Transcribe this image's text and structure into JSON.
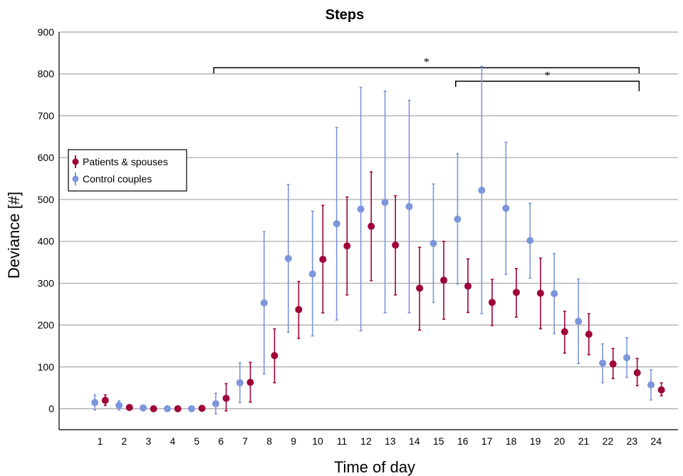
{
  "chart_data": {
    "type": "scatter",
    "title": "Steps",
    "xlabel": "Time of day",
    "ylabel": "Deviance [#]",
    "ylim": [
      -50,
      900
    ],
    "yticks": [
      0,
      100,
      200,
      300,
      400,
      500,
      600,
      700,
      800,
      900
    ],
    "categories": [
      "1",
      "2",
      "3",
      "4",
      "5",
      "6",
      "7",
      "8",
      "9",
      "10",
      "11",
      "12",
      "13",
      "14",
      "15",
      "16",
      "17",
      "18",
      "19",
      "20",
      "21",
      "22",
      "23",
      "24"
    ],
    "grid": "horizontal",
    "legend": "top-left",
    "series": [
      {
        "name": "Patients & spouses",
        "color": "#a0003a",
        "values": [
          20,
          3,
          0,
          0,
          1,
          25,
          63,
          127,
          237,
          357,
          389,
          436,
          391,
          288,
          307,
          293,
          254,
          278,
          276,
          184,
          178,
          107,
          86,
          45
        ],
        "lower": [
          8,
          0,
          0,
          0,
          0,
          -5,
          16,
          62,
          168,
          229,
          272,
          306,
          272,
          188,
          214,
          230,
          199,
          219,
          191,
          133,
          129,
          72,
          55,
          31
        ],
        "upper": [
          33,
          6,
          1,
          1,
          2,
          60,
          111,
          191,
          304,
          486,
          506,
          566,
          509,
          386,
          400,
          358,
          309,
          335,
          360,
          233,
          227,
          144,
          120,
          62
        ]
      },
      {
        "name": "Control couples",
        "color": "#7b96db",
        "values": [
          15,
          8,
          2,
          0,
          0,
          12,
          62,
          253,
          359,
          322,
          442,
          477,
          493,
          483,
          395,
          453,
          522,
          479,
          402,
          275,
          209,
          109,
          122,
          57
        ],
        "lower": [
          -3,
          -3,
          0,
          0,
          0,
          -12,
          15,
          83,
          183,
          174,
          212,
          186,
          229,
          229,
          254,
          298,
          227,
          321,
          312,
          180,
          108,
          62,
          75,
          21
        ],
        "upper": [
          33,
          19,
          4,
          1,
          1,
          37,
          110,
          423,
          536,
          472,
          672,
          768,
          759,
          737,
          537,
          609,
          818,
          637,
          491,
          371,
          310,
          155,
          170,
          93
        ]
      }
    ],
    "annotations": [
      {
        "label": "*",
        "from": "6",
        "to": "23"
      },
      {
        "label": "*",
        "from": "16",
        "to": "23"
      }
    ]
  }
}
